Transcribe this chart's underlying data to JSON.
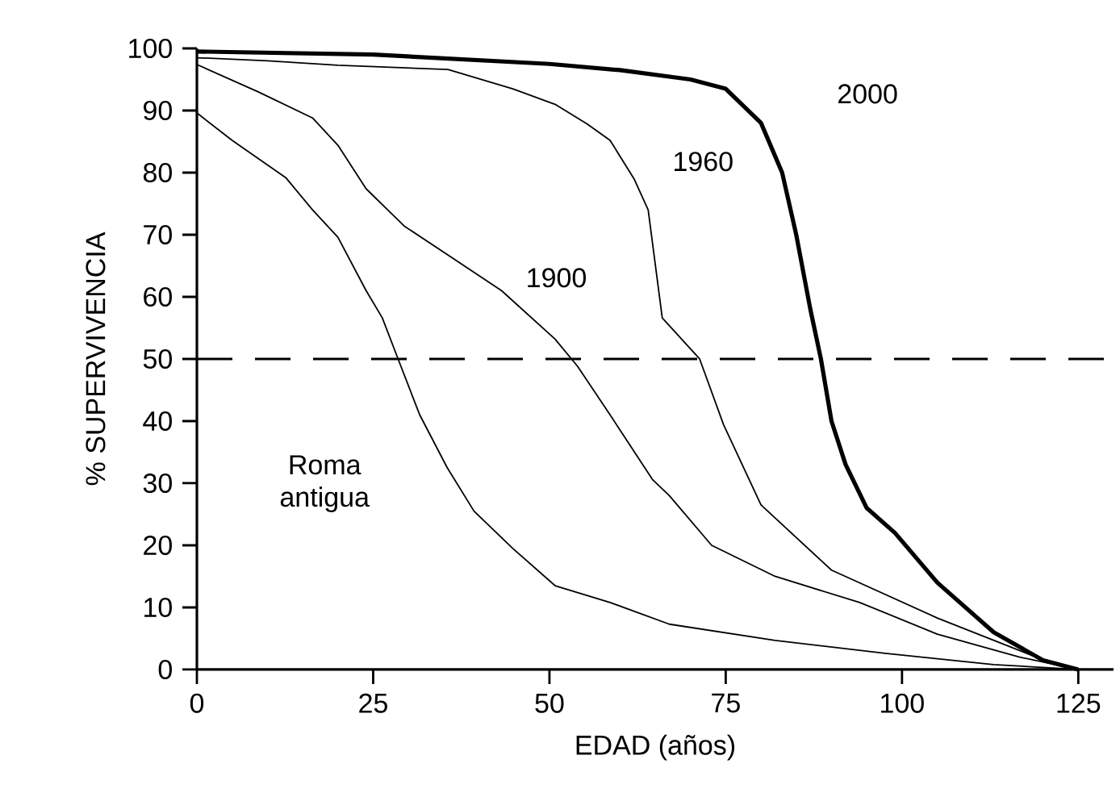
{
  "chart_data": {
    "type": "line",
    "xlabel": "EDAD (años)",
    "ylabel": "% SUPERVIVENCIA",
    "x": [
      0,
      5,
      12.6,
      16.4,
      20,
      24,
      26.3,
      28.6,
      31.6,
      35.5,
      39.3,
      44.8,
      50.8,
      58.6,
      67,
      82,
      97.6,
      113,
      125
    ],
    "series": [
      {
        "name": "Roma antigua",
        "color": "#000000",
        "values": [
          89.6,
          85.2,
          79.2,
          74,
          69.6,
          61,
          56.6,
          49.8,
          41,
          32.5,
          25.5,
          19.5,
          13.5,
          10.8,
          7.3,
          4.7,
          2.6,
          0.8,
          0
        ]
      },
      {
        "name": "1900",
        "color": "#000000",
        "x": [
          0,
          8.7,
          16.4,
          20,
          24,
          29.4,
          35.5,
          43.2,
          50.8,
          54,
          58.6,
          64.6,
          67,
          73,
          82,
          94,
          105,
          116.7,
          125
        ],
        "values": [
          97.4,
          93,
          88.8,
          84.4,
          77.4,
          71.4,
          66.8,
          61,
          53.2,
          48.8,
          41,
          30.6,
          28,
          20,
          15,
          10.8,
          5.7,
          2,
          0
        ]
      },
      {
        "name": "1960",
        "color": "#000000",
        "x": [
          0,
          10,
          20,
          35.6,
          44.8,
          50.8,
          55.4,
          58.6,
          62,
          64,
          66,
          71.3,
          74.7,
          80,
          90,
          105,
          120.6,
          125
        ],
        "values": [
          98.5,
          98,
          97.3,
          96.6,
          93.5,
          91,
          87.8,
          85.2,
          79,
          74,
          56.6,
          50,
          39.4,
          26.5,
          16,
          8.3,
          1.3,
          0
        ]
      },
      {
        "name": "2000",
        "color": "#000000",
        "x": [
          0,
          25,
          50,
          60,
          70,
          75,
          80,
          83,
          85,
          87,
          88.5,
          90,
          92,
          95,
          99,
          105,
          113,
          120,
          125
        ],
        "values": [
          99.5,
          99,
          97.5,
          96.5,
          95,
          93.5,
          88,
          80,
          70,
          58,
          50,
          40,
          33,
          26,
          22,
          14,
          6,
          1.5,
          0
        ]
      }
    ],
    "ref_lines": [
      {
        "axis": "y",
        "value": 50,
        "line_style": "dashed",
        "color": "#000000"
      }
    ],
    "xlim": [
      0,
      130
    ],
    "ylim": [
      0,
      100
    ],
    "xticks": [
      0,
      25,
      50,
      75,
      100,
      125
    ],
    "yticks": [
      0,
      10,
      20,
      30,
      40,
      50,
      60,
      70,
      80,
      90,
      100
    ],
    "grid": false,
    "legend": false,
    "marker": "none",
    "line_style": "solid"
  }
}
